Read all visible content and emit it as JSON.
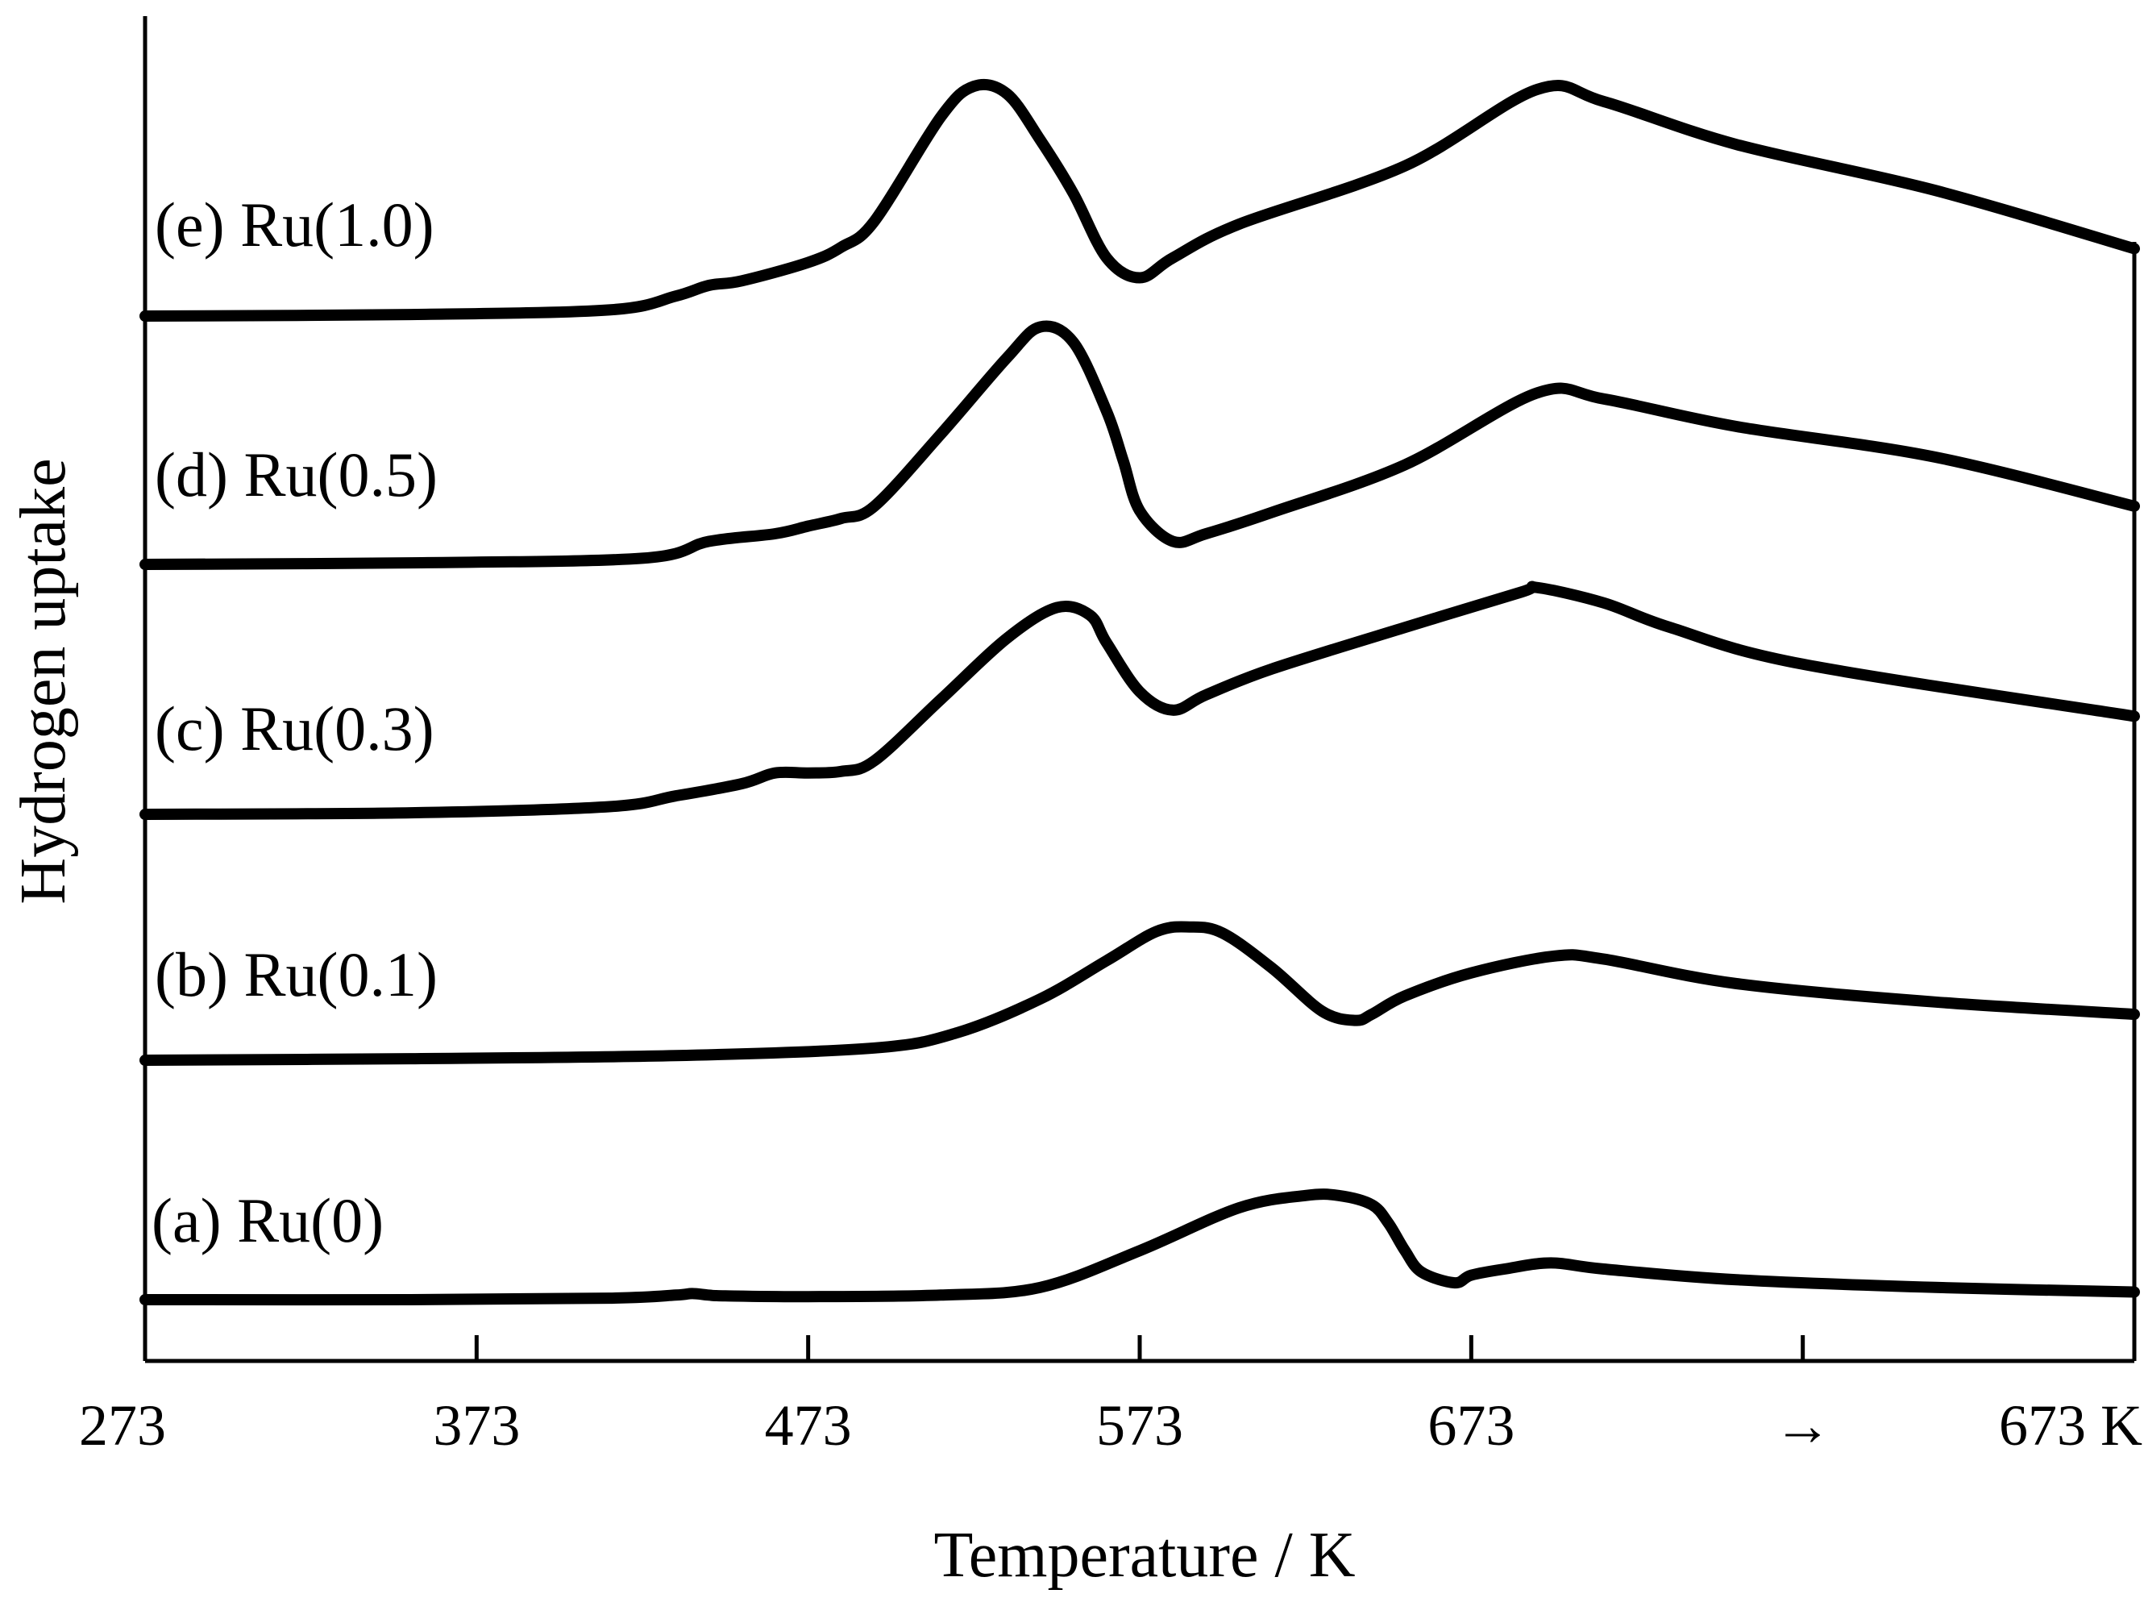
{
  "chart_data": {
    "type": "line",
    "xlabel": "Temperature / K",
    "ylabel": "Hydrogen uptake",
    "x_tick_labels": [
      "273",
      "373",
      "473",
      "573",
      "673",
      "→",
      "673 K"
    ],
    "xlim": [
      273,
      873
    ],
    "y_ticks_shown": false,
    "grid": false,
    "legend": "none (inline labels left of each curve)",
    "notes_visible": "after 673 K the temperature is held constant (arrow segment)",
    "colors": {
      "line": "#000000",
      "background": "#ffffff"
    },
    "series": [
      {
        "name": "(a) Ru(0)",
        "x": [
          273,
          353,
          413,
          433,
          438,
          443,
          448,
          473,
          513,
          543,
          573,
          603,
          623,
          633,
          643,
          648,
          653,
          658,
          668,
          673,
          683,
          697,
          713,
          753,
          813,
          873
        ],
        "y": [
          0.0,
          0.0,
          0.01,
          0.03,
          0.04,
          0.03,
          0.025,
          0.02,
          0.03,
          0.08,
          0.32,
          0.6,
          0.68,
          0.68,
          0.62,
          0.5,
          0.32,
          0.18,
          0.11,
          0.16,
          0.2,
          0.24,
          0.2,
          0.13,
          0.08,
          0.05
        ]
      },
      {
        "name": "(b) Ru(0.1)",
        "x": [
          273,
          353,
          433,
          493,
          518,
          543,
          563,
          578,
          588,
          598,
          613,
          628,
          638,
          643,
          653,
          673,
          698,
          713,
          753,
          813,
          873
        ],
        "y": [
          0.0,
          0.01,
          0.03,
          0.08,
          0.18,
          0.4,
          0.65,
          0.84,
          0.87,
          0.83,
          0.6,
          0.32,
          0.26,
          0.3,
          0.42,
          0.57,
          0.68,
          0.66,
          0.5,
          0.38,
          0.3
        ]
      },
      {
        "name": "(c) Ru(0.3)",
        "x": [
          273,
          353,
          413,
          433,
          453,
          463,
          473,
          483,
          493,
          513,
          533,
          548,
          558,
          563,
          573,
          583,
          593,
          613,
          653,
          688,
          693,
          713,
          733,
          773,
          873
        ],
        "y": [
          0.0,
          0.01,
          0.05,
          0.12,
          0.2,
          0.27,
          0.27,
          0.28,
          0.35,
          0.75,
          1.15,
          1.35,
          1.3,
          1.12,
          0.8,
          0.68,
          0.78,
          0.95,
          1.22,
          1.45,
          1.48,
          1.38,
          1.22,
          0.98,
          0.64
        ]
      },
      {
        "name": "(d) Ru(0.5)",
        "x": [
          273,
          353,
          423,
          443,
          463,
          473,
          483,
          493,
          513,
          533,
          543,
          553,
          563,
          568,
          573,
          583,
          593,
          613,
          653,
          693,
          713,
          753,
          813,
          873
        ],
        "y": [
          0.0,
          0.01,
          0.04,
          0.15,
          0.2,
          0.25,
          0.3,
          0.38,
          0.85,
          1.35,
          1.55,
          1.45,
          1.0,
          0.68,
          0.35,
          0.15,
          0.2,
          0.34,
          0.65,
          1.12,
          1.08,
          0.9,
          0.7,
          0.38
        ]
      },
      {
        "name": "(e) Ru(1.0)",
        "x": [
          273,
          353,
          413,
          433,
          443,
          453,
          473,
          483,
          493,
          513,
          523,
          533,
          543,
          553,
          563,
          573,
          583,
          603,
          653,
          693,
          713,
          753,
          813,
          873
        ],
        "y": [
          0.0,
          0.01,
          0.04,
          0.13,
          0.2,
          0.23,
          0.35,
          0.45,
          0.62,
          1.3,
          1.5,
          1.45,
          1.15,
          0.8,
          0.38,
          0.25,
          0.38,
          0.6,
          0.98,
          1.48,
          1.4,
          1.12,
          0.82,
          0.44
        ]
      }
    ]
  }
}
